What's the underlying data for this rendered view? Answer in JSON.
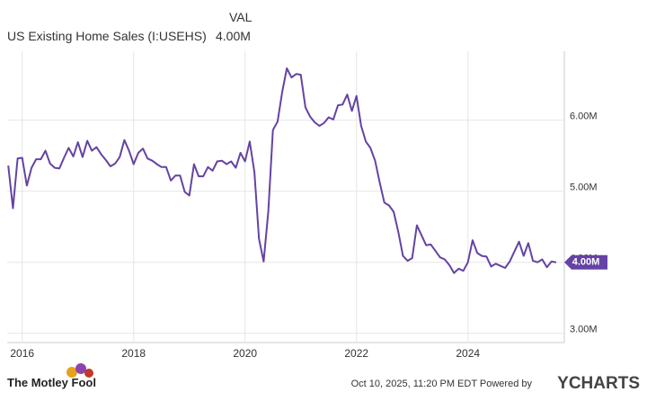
{
  "chart_data": {
    "type": "line",
    "series_header": "VAL",
    "series": [
      {
        "name": "US Existing Home Sales (I:USEHS)",
        "color": "#6443a4",
        "values": [
          5.36,
          4.76,
          5.46,
          5.47,
          5.08,
          5.33,
          5.45,
          5.45,
          5.57,
          5.39,
          5.33,
          5.32,
          5.47,
          5.61,
          5.49,
          5.69,
          5.48,
          5.71,
          5.57,
          5.62,
          5.52,
          5.44,
          5.35,
          5.39,
          5.48,
          5.72,
          5.57,
          5.38,
          5.54,
          5.6,
          5.46,
          5.43,
          5.38,
          5.34,
          5.34,
          5.15,
          5.22,
          5.22,
          4.99,
          4.94,
          5.38,
          5.21,
          5.21,
          5.34,
          5.29,
          5.42,
          5.43,
          5.38,
          5.42,
          5.33,
          5.54,
          5.42,
          5.7,
          5.27,
          4.33,
          4.01,
          4.72,
          5.86,
          5.98,
          6.4,
          6.73,
          6.6,
          6.65,
          6.64,
          6.18,
          6.05,
          5.97,
          5.92,
          5.96,
          6.04,
          6.01,
          6.21,
          6.22,
          6.36,
          6.13,
          6.34,
          5.92,
          5.7,
          5.61,
          5.43,
          5.12,
          4.84,
          4.8,
          4.71,
          4.43,
          4.09,
          4.02,
          4.06,
          4.52,
          4.38,
          4.24,
          4.25,
          4.16,
          4.07,
          4.04,
          3.96,
          3.85,
          3.91,
          3.88,
          4.0,
          4.31,
          4.13,
          4.09,
          4.08,
          3.94,
          3.98,
          3.95,
          3.92,
          4.01,
          4.15,
          4.29,
          4.09,
          4.27,
          4.02,
          4.0,
          4.04,
          3.93,
          4.01,
          4.0
        ],
        "current_value": {
          "value": 4.0,
          "label": "4.00M"
        }
      }
    ],
    "x": [
      2015.75,
      2015.833,
      2015.917,
      2016,
      2016.083,
      2016.167,
      2016.25,
      2016.333,
      2016.417,
      2016.5,
      2016.583,
      2016.667,
      2016.75,
      2016.833,
      2016.917,
      2017,
      2017.083,
      2017.167,
      2017.25,
      2017.333,
      2017.417,
      2017.5,
      2017.583,
      2017.667,
      2017.75,
      2017.833,
      2017.917,
      2018,
      2018.083,
      2018.167,
      2018.25,
      2018.333,
      2018.417,
      2018.5,
      2018.583,
      2018.667,
      2018.75,
      2018.833,
      2018.917,
      2019,
      2019.083,
      2019.167,
      2019.25,
      2019.333,
      2019.417,
      2019.5,
      2019.583,
      2019.667,
      2019.75,
      2019.833,
      2019.917,
      2020,
      2020.083,
      2020.167,
      2020.25,
      2020.333,
      2020.417,
      2020.5,
      2020.583,
      2020.667,
      2020.75,
      2020.833,
      2020.917,
      2021,
      2021.083,
      2021.167,
      2021.25,
      2021.333,
      2021.417,
      2021.5,
      2021.583,
      2021.667,
      2021.75,
      2021.833,
      2021.917,
      2022,
      2022.083,
      2022.167,
      2022.25,
      2022.333,
      2022.417,
      2022.5,
      2022.583,
      2022.667,
      2022.75,
      2022.833,
      2022.917,
      2023,
      2023.083,
      2023.167,
      2023.25,
      2023.333,
      2023.417,
      2023.5,
      2023.583,
      2023.667,
      2023.75,
      2023.833,
      2023.917,
      2024,
      2024.083,
      2024.167,
      2024.25,
      2024.333,
      2024.417,
      2024.5,
      2024.583,
      2024.667,
      2024.75,
      2024.833,
      2024.917,
      2025,
      2025.083,
      2025.167,
      2025.25,
      2025.333,
      2025.417,
      2025.5,
      2025.583
    ],
    "xlim": [
      2015.73,
      2025.73
    ],
    "xticks": [
      2016,
      2018,
      2020,
      2022,
      2024
    ],
    "ylim": [
      2.87,
      6.97
    ],
    "yticks": [
      {
        "value": 3,
        "label": "3.00M"
      },
      {
        "value": 4,
        "label": "4.00M"
      },
      {
        "value": 5,
        "label": "5.00M"
      },
      {
        "value": 6,
        "label": "6.00M"
      }
    ],
    "grid": true,
    "footer": {
      "timestamp": "Oct 10, 2025, 11:20 PM EDT  Powered by",
      "brand": "YCHARTS",
      "publisher": "The Motley Fool"
    }
  }
}
